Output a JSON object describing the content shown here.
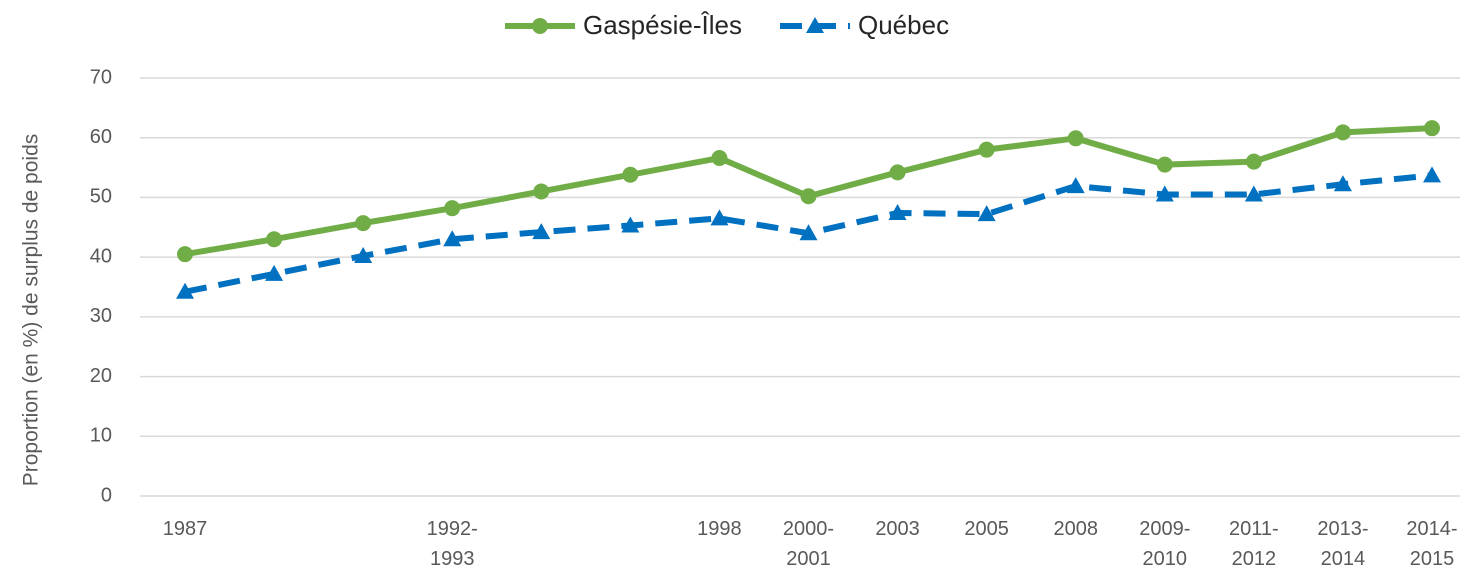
{
  "chart_data": {
    "type": "line",
    "y_label": "Proportion (en %) de surplus de poids",
    "categories": [
      "1987",
      null,
      null,
      "1992-1993",
      null,
      null,
      "1998",
      "2000-2001",
      "2003",
      "2005",
      "2008",
      "2009-2010",
      "2011-2012",
      "2013-2014",
      "2014-2015"
    ],
    "series": [
      {
        "name": "Gaspésie-Îles",
        "color": "#70ad47",
        "marker": "circle",
        "dash": "solid",
        "values": [
          40.5,
          43.0,
          45.7,
          48.2,
          51.0,
          53.8,
          56.6,
          50.2,
          54.2,
          58.0,
          59.9,
          55.5,
          56.0,
          60.9,
          61.6
        ]
      },
      {
        "name": "Québec",
        "color": "#0070c0",
        "marker": "triangle",
        "dash": "dashed",
        "values": [
          34.2,
          37.2,
          40.2,
          43.0,
          44.2,
          45.3,
          46.5,
          44.0,
          47.4,
          47.2,
          51.9,
          50.5,
          50.5,
          52.2,
          53.7
        ]
      }
    ],
    "ylim": [
      0,
      70
    ],
    "yticks": [
      0,
      10,
      20,
      30,
      40,
      50,
      60,
      70
    ],
    "grid": true,
    "legend": "top"
  }
}
